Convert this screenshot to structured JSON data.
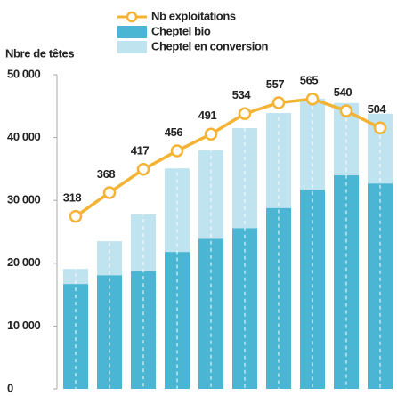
{
  "chart_data": {
    "type": "bar-line",
    "y_label": "Nbre de têtes",
    "categories": [
      null,
      null,
      null,
      null,
      null,
      null,
      null,
      null,
      null,
      null
    ],
    "series": [
      {
        "name": "Cheptel bio",
        "color": "#4bb6d3",
        "values": [
          16700,
          18100,
          18800,
          21800,
          23900,
          25600,
          28800,
          31700,
          34000,
          32700
        ]
      },
      {
        "name": "Cheptel en conversion",
        "color": "#bfe3ef",
        "values": [
          2400,
          5400,
          9000,
          13300,
          14100,
          15900,
          15100,
          14500,
          11500,
          11100
        ]
      },
      {
        "name": "Nb exploitations",
        "color": "#f5b335",
        "axis": "y2",
        "values": [
          318,
          368,
          417,
          456,
          491,
          534,
          557,
          565,
          540,
          504
        ]
      }
    ],
    "ylim": [
      0,
      50000
    ],
    "yticks": [
      0,
      {
        "value": 10000,
        "label": "10 000"
      },
      {
        "value": 20000,
        "label": "20 000"
      },
      {
        "value": 30000,
        "label": "30 000"
      },
      {
        "value": 40000,
        "label": "40 000"
      },
      {
        "value": 50000,
        "label": "50 000"
      }
    ],
    "y2lim": [
      -45,
      616
    ]
  }
}
